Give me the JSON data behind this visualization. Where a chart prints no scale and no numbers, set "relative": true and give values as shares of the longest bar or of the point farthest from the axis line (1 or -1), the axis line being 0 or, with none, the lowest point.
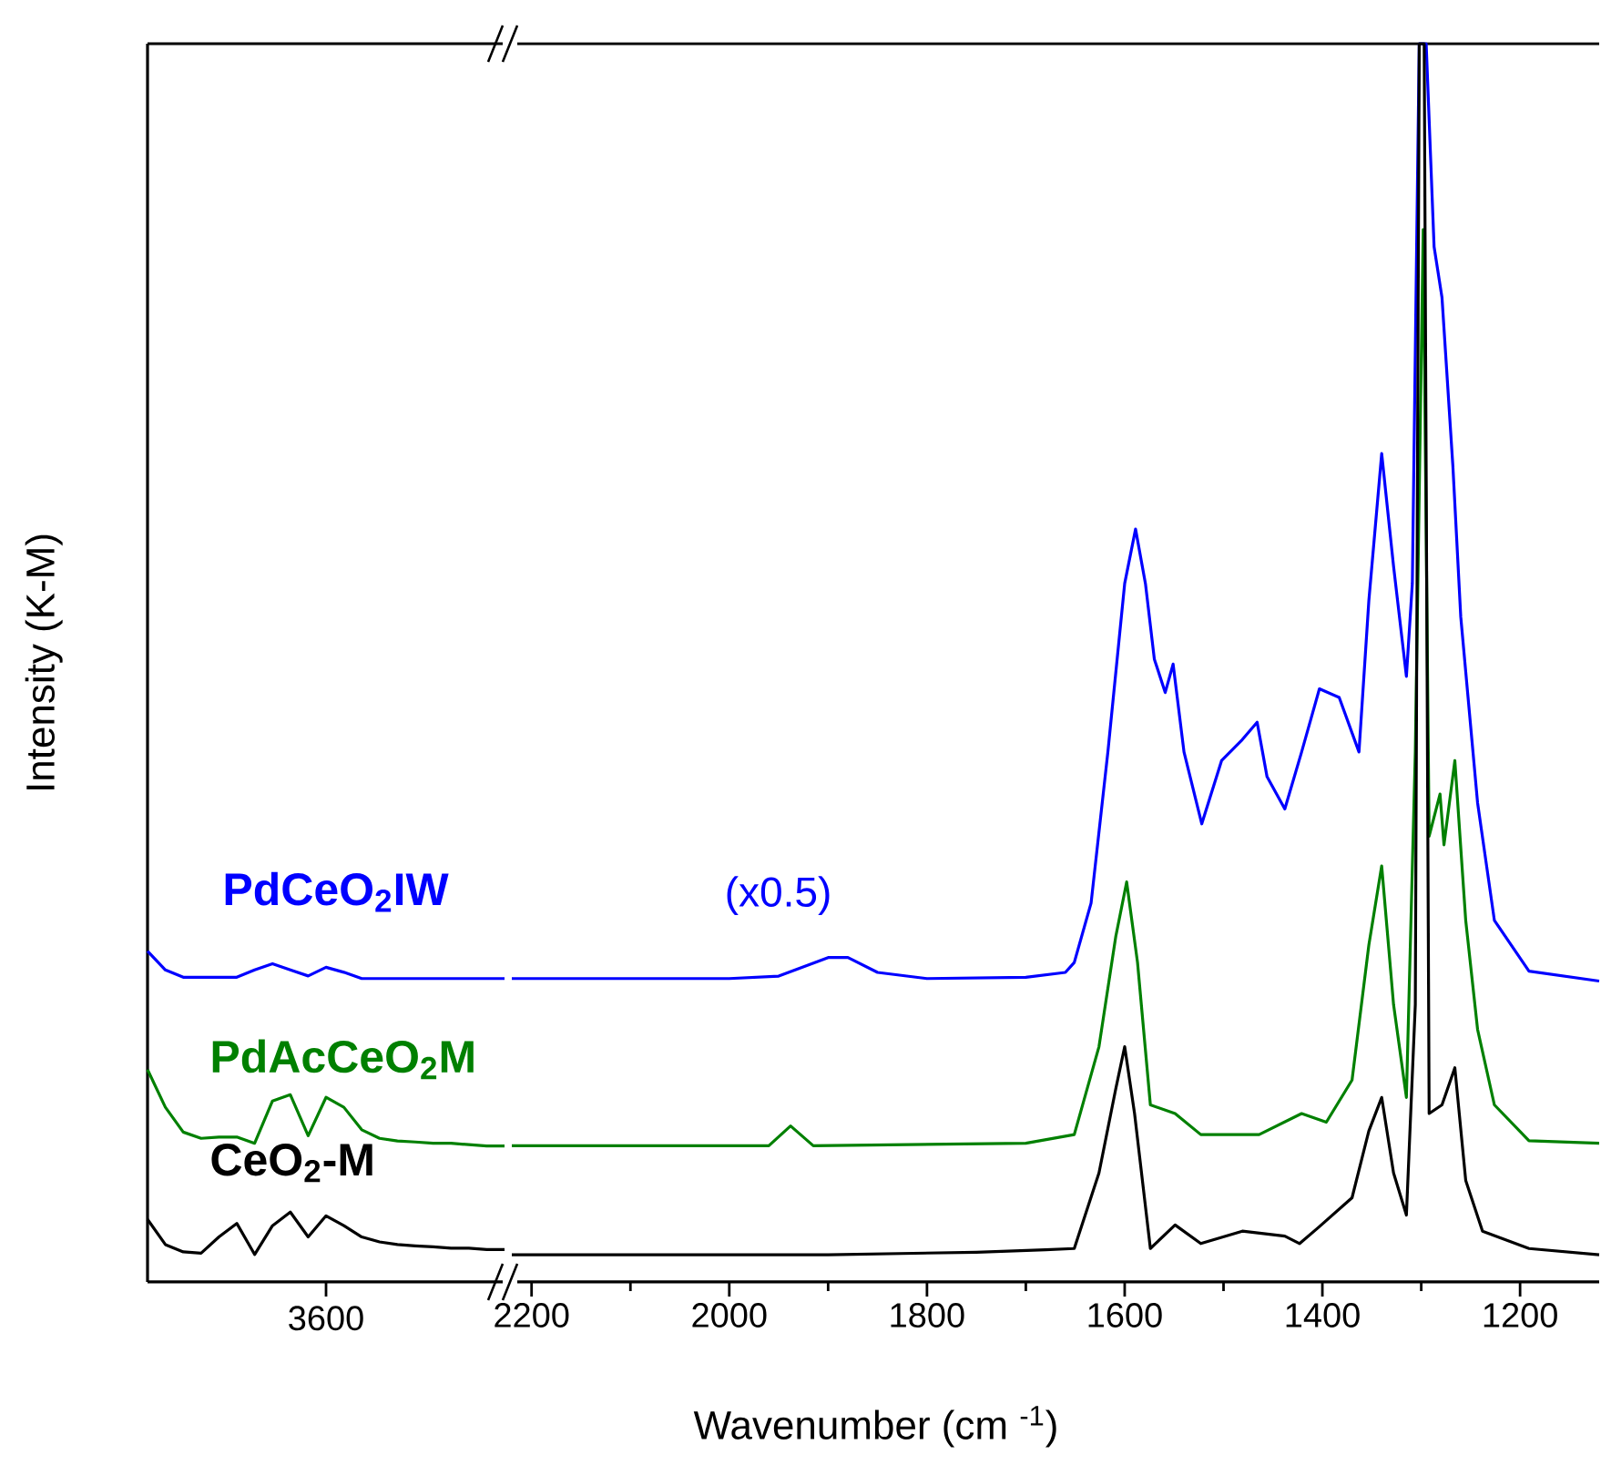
{
  "chart_data": [
    {
      "type": "line",
      "ylabel": "Intensity (K-M)",
      "relative": true,
      "categories": [
        null,
        null,
        null,
        null,
        null,
        null,
        null,
        null,
        null,
        null,
        null,
        null,
        null,
        null,
        null,
        null,
        null,
        null,
        null,
        null,
        null
      ],
      "annotations": [
        {
          "text": "3600"
        }
      ],
      "series": [
        {
          "name": "PdCeO$_{2}$IW",
          "color": "#0000ff",
          "values": [
            1,
            0.943,
            0.921,
            0.921,
            0.921,
            0.921,
            0.943,
            0.962,
            0.943,
            0.925,
            0.951,
            0.936,
            0.917,
            0.917,
            0.917,
            0.917,
            0.917,
            0.917,
            0.917,
            0.917,
            0.917
          ]
        },
        {
          "name": "PdAcCeO$_{2}$M",
          "color": "#008000",
          "values": [
            0.642,
            0.528,
            0.453,
            0.434,
            0.438,
            0.438,
            0.419,
            0.547,
            0.566,
            0.442,
            0.558,
            0.528,
            0.46,
            0.434,
            0.426,
            0.423,
            0.419,
            0.419,
            0.415,
            0.411,
            0.411
          ]
        },
        {
          "name": "CeO$_{2}$-M",
          "color": "#000000",
          "values": [
            0.189,
            0.113,
            0.091,
            0.087,
            0.136,
            0.177,
            0.083,
            0.17,
            0.211,
            0.136,
            0.2,
            0.17,
            0.136,
            0.121,
            0.113,
            0.109,
            0.106,
            0.102,
            0.102,
            0.098,
            0.098
          ]
        }
      ]
    },
    {
      "type": "line",
      "xlabel": "Wavenumber (cm $^{-1}$)",
      "relative": true,
      "xlim": [
        2220,
        1120
      ],
      "xticks": [
        2200,
        {
          "value": 2100,
          "label": null
        },
        2000,
        {
          "value": 1900,
          "label": null
        },
        1800,
        {
          "value": 1700,
          "label": null
        },
        1600,
        {
          "value": 1500,
          "label": null
        },
        1400,
        {
          "value": 1300,
          "label": null
        },
        1200
      ],
      "annotations": [
        "(x0.5)"
      ],
      "series": [
        {
          "color": "#0000ff",
          "x": [
            2220,
            2000,
            1950,
            1900,
            1880,
            1850,
            1800,
            1700,
            1660,
            1651,
            1634,
            1617,
            1600,
            1589,
            1579,
            1570,
            1559,
            1551,
            1540,
            1522,
            1502,
            1481,
            1466,
            1456,
            1438,
            1421,
            1403,
            1383,
            1363,
            1353,
            1340,
            1328,
            1315,
            1309,
            1302,
            1295,
            1287,
            1279,
            1268,
            1260,
            1243,
            1226,
            1191,
            1120
          ],
          "values": [
            0.245,
            0.245,
            0.247,
            0.262,
            0.262,
            0.25,
            0.245,
            0.246,
            0.25,
            0.258,
            0.306,
            0.428,
            0.564,
            0.608,
            0.564,
            0.503,
            0.476,
            0.499,
            0.428,
            0.37,
            0.421,
            0.438,
            0.452,
            0.408,
            0.382,
            0.428,
            0.479,
            0.472,
            0.428,
            0.55,
            0.669,
            0.578,
            0.489,
            0.564,
            1,
            1,
            0.836,
            0.795,
            0.659,
            0.537,
            0.387,
            0.292,
            0.251,
            0.243
          ]
        },
        {
          "color": "#008000",
          "x": [
            2220,
            1960,
            1938,
            1915,
            1700,
            1651,
            1626,
            1609,
            1598,
            1587,
            1574,
            1549,
            1523,
            1464,
            1421,
            1396,
            1370,
            1353,
            1340,
            1328,
            1315,
            1306,
            1298,
            1292,
            1281,
            1277,
            1266,
            1255,
            1243,
            1226,
            1191,
            1120
          ],
          "values": [
            0.11,
            0.11,
            0.126,
            0.11,
            0.112,
            0.119,
            0.19,
            0.279,
            0.323,
            0.258,
            0.143,
            0.136,
            0.119,
            0.119,
            0.136,
            0.129,
            0.163,
            0.272,
            0.336,
            0.224,
            0.149,
            0.428,
            0.85,
            0.36,
            0.394,
            0.353,
            0.421,
            0.292,
            0.204,
            0.143,
            0.114,
            0.112
          ]
        },
        {
          "color": "#000000",
          "x": [
            2220,
            1900,
            1750,
            1680,
            1651,
            1626,
            1609,
            1600,
            1590,
            1574,
            1549,
            1523,
            1481,
            1438,
            1423,
            1404,
            1370,
            1353,
            1340,
            1328,
            1315,
            1306,
            1302,
            1297,
            1292,
            1279,
            1266,
            1255,
            1238,
            1191,
            1120
          ],
          "values": [
            0.022,
            0.022,
            0.024,
            0.026,
            0.027,
            0.088,
            0.156,
            0.19,
            0.136,
            0.027,
            0.046,
            0.031,
            0.041,
            0.037,
            0.031,
            0.044,
            0.068,
            0.122,
            0.149,
            0.088,
            0.054,
            0.224,
            1,
            1,
            0.136,
            0.143,
            0.173,
            0.082,
            0.041,
            0.027,
            0.022
          ]
        }
      ]
    }
  ]
}
